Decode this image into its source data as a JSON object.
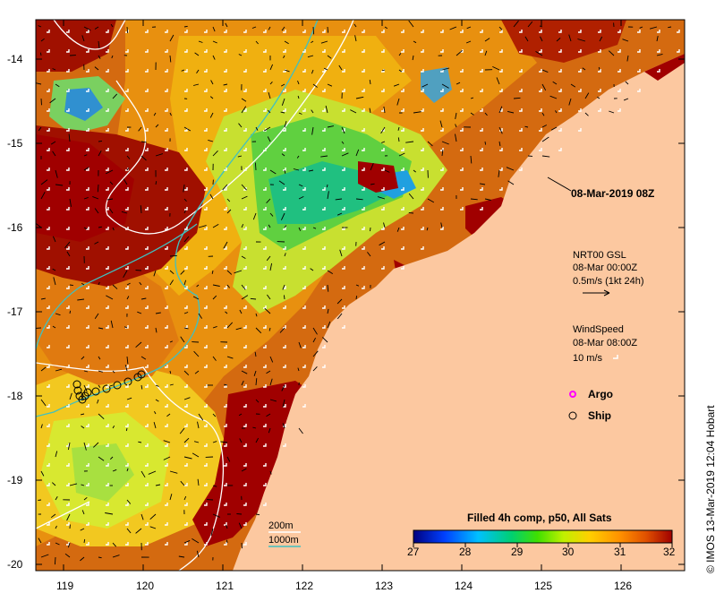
{
  "map": {
    "x_ticks": [
      "119",
      "120",
      "121",
      "122",
      "123",
      "124",
      "125",
      "126"
    ],
    "y_ticks": [
      "-14",
      "-15",
      "-16",
      "-17",
      "-18",
      "-19",
      "-20"
    ],
    "timestamp_label": "08-Mar-2019 08Z",
    "current_legend": {
      "line1": "NRT00 GSL",
      "line2": "08-Mar 00:00Z",
      "line3": "0.5m/s (1kt 24h)"
    },
    "wind_legend": {
      "line1": "WindSpeed",
      "line2": "08-Mar 08:00Z",
      "line3": "10 m/s"
    },
    "markers": {
      "argo_label": "Argo",
      "ship_label": "Ship"
    },
    "isobaths": {
      "shallow_label": "200m",
      "deep_label": "1000m",
      "shallow_color": "#ffffff",
      "deep_color": "#40c0c0"
    },
    "colorbar": {
      "title": "Filled 4h comp, p50, All Sats",
      "ticks": [
        "27",
        "28",
        "29",
        "30",
        "31",
        "32"
      ],
      "colors": [
        "#00007f",
        "#0040ff",
        "#00c0ff",
        "#00d070",
        "#40e000",
        "#c0f000",
        "#ffd000",
        "#ff9000",
        "#e05000",
        "#a00000"
      ]
    },
    "credit": "© IMOS 13-Mar-2019 12:04 Hobart",
    "colors": {
      "land": "#fcc8a0",
      "argo": "#ff00ff",
      "ship": "#000000"
    }
  }
}
